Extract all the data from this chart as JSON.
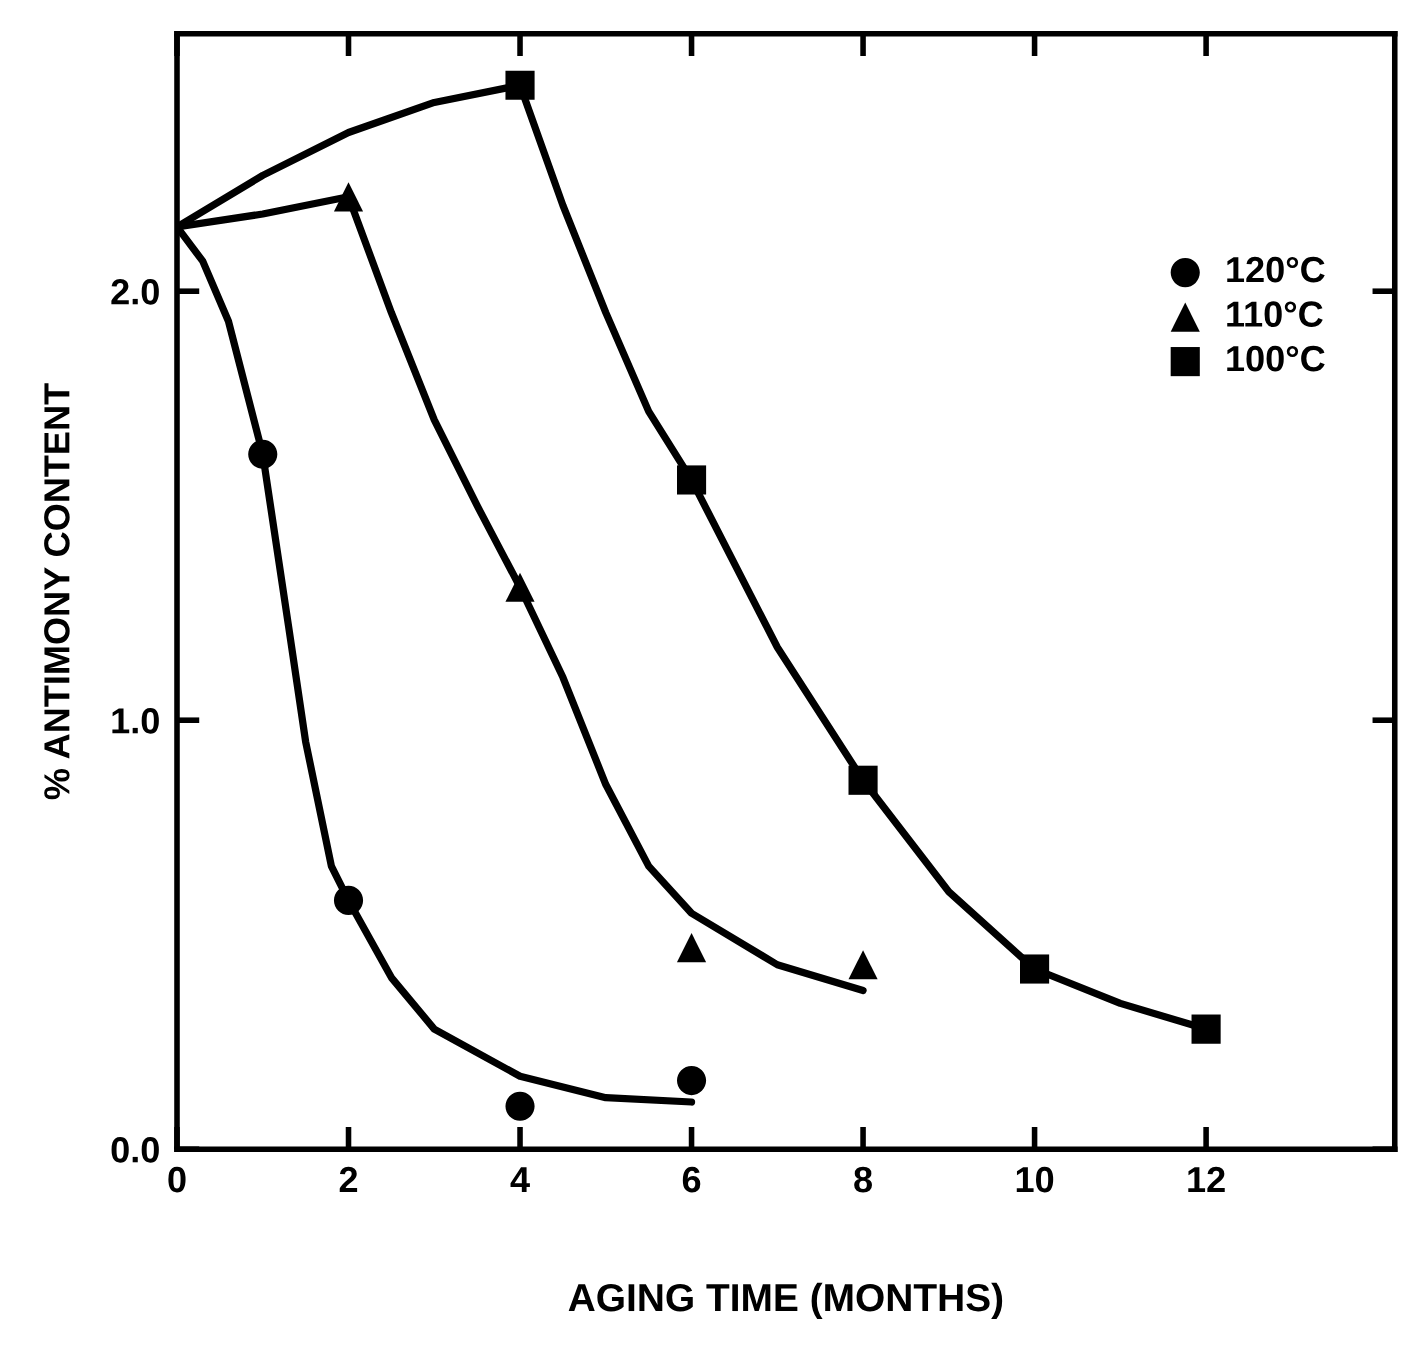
{
  "chart_data": {
    "type": "scatter",
    "xlabel": "AGING TIME (MONTHS)",
    "ylabel": "% ANTIMONY CONTENT",
    "xlim": [
      0,
      14.2
    ],
    "ylim": [
      0,
      2.6
    ],
    "xticks": [
      0,
      2,
      4,
      6,
      8,
      10,
      12
    ],
    "yticks": [
      {
        "value": 0,
        "label": "0.0"
      },
      {
        "value": 1,
        "label": "1.0"
      },
      {
        "value": 2,
        "label": "2.0"
      }
    ],
    "grid": false,
    "legend": "top right",
    "series": [
      {
        "name": "120°C",
        "marker": "circle",
        "color": "#000000",
        "x": [
          1,
          2,
          4,
          6
        ],
        "values": [
          1.62,
          0.58,
          0.1,
          0.16
        ]
      },
      {
        "name": "110°C",
        "marker": "triangle",
        "color": "#000000",
        "x": [
          2,
          4,
          6,
          8
        ],
        "values": [
          2.22,
          1.31,
          0.47,
          0.43
        ]
      },
      {
        "name": "100°C",
        "marker": "square",
        "color": "#000000",
        "x": [
          4,
          6,
          8,
          10,
          12
        ],
        "values": [
          2.48,
          1.56,
          0.86,
          0.42,
          0.28
        ]
      },
      {
        "type": "line",
        "marker": "none",
        "line_style": "solid",
        "color": "#000000",
        "x": [
          0,
          0.3,
          0.6,
          1,
          1.3,
          1.5,
          1.8,
          2,
          2.5,
          3,
          4,
          5,
          6
        ],
        "values": [
          2.15,
          2.07,
          1.93,
          1.62,
          1.22,
          0.95,
          0.66,
          0.58,
          0.4,
          0.28,
          0.17,
          0.12,
          0.11
        ]
      },
      {
        "type": "line",
        "marker": "none",
        "line_style": "solid",
        "color": "#000000",
        "x": [
          0,
          1,
          2,
          2.5,
          3,
          3.5,
          4,
          4.5,
          5,
          5.5,
          6,
          7,
          8
        ],
        "values": [
          2.15,
          2.18,
          2.22,
          1.95,
          1.7,
          1.5,
          1.31,
          1.1,
          0.85,
          0.66,
          0.55,
          0.43,
          0.37
        ]
      },
      {
        "type": "line",
        "marker": "none",
        "line_style": "solid",
        "color": "#000000",
        "x": [
          0,
          1,
          2,
          3,
          4,
          4.5,
          5,
          5.5,
          6,
          7,
          8,
          9,
          10,
          11,
          12
        ],
        "values": [
          2.15,
          2.27,
          2.37,
          2.44,
          2.48,
          2.2,
          1.95,
          1.72,
          1.56,
          1.17,
          0.86,
          0.6,
          0.42,
          0.34,
          0.28
        ]
      }
    ]
  }
}
